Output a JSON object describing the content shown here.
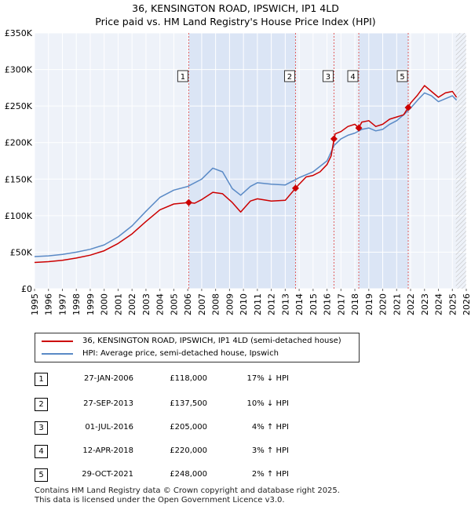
{
  "title": {
    "line1": "36, KENSINGTON ROAD, IPSWICH, IP1 4LD",
    "line2": "Price paid vs. HM Land Registry's House Price Index (HPI)"
  },
  "colors": {
    "property": "#cc0000",
    "hpi": "#5a8ac6",
    "shade": "#dbe5f5",
    "vline": "#e06060",
    "grid": "#ffffff",
    "background": "#ffffff"
  },
  "chart_data": {
    "type": "line",
    "title": "36, KENSINGTON ROAD, IPSWICH, IP1 4LD Price paid vs. HM Land Registry's House Price Index (HPI)",
    "xlabel": "",
    "ylabel": "",
    "xlim": [
      1995,
      2026
    ],
    "ylim": [
      0,
      350000
    ],
    "xticks": [
      "1995",
      "1996",
      "1997",
      "1998",
      "1999",
      "2000",
      "2001",
      "2002",
      "2003",
      "2004",
      "2005",
      "2006",
      "2007",
      "2008",
      "2009",
      "2010",
      "2011",
      "2012",
      "2013",
      "2014",
      "2015",
      "2016",
      "2017",
      "2018",
      "2019",
      "2020",
      "2021",
      "2022",
      "2023",
      "2024",
      "2025",
      "2026"
    ],
    "yticks": [
      {
        "value": 0,
        "label": "£0"
      },
      {
        "value": 50000,
        "label": "£50K"
      },
      {
        "value": 100000,
        "label": "£100K"
      },
      {
        "value": 150000,
        "label": "£150K"
      },
      {
        "value": 200000,
        "label": "£200K"
      },
      {
        "value": 250000,
        "label": "£250K"
      },
      {
        "value": 300000,
        "label": "£300K"
      },
      {
        "value": 350000,
        "label": "£350K"
      }
    ],
    "shaded_periods": [
      [
        2006.07,
        2013.74
      ],
      [
        2018.28,
        2021.83
      ]
    ],
    "hatched_from": 2025.25,
    "series": [
      {
        "name": "36, KENSINGTON ROAD, IPSWICH, IP1 4LD (semi-detached house)",
        "color": "#cc0000",
        "x": [
          1995,
          1996,
          1997,
          1998,
          1999,
          2000,
          2001,
          2002,
          2003,
          2004,
          2005,
          2006.07,
          2006.5,
          2007,
          2007.8,
          2008.5,
          2009.2,
          2009.8,
          2010.5,
          2011,
          2012,
          2013,
          2013.74,
          2014,
          2014.5,
          2015,
          2015.5,
          2016,
          2016.3,
          2016.5,
          2016.6,
          2017,
          2017.5,
          2018,
          2018.28,
          2018.5,
          2019,
          2019.5,
          2020,
          2020.5,
          2021,
          2021.5,
          2021.83,
          2022,
          2022.5,
          2023,
          2023.5,
          2024,
          2024.5,
          2025,
          2025.3
        ],
        "y": [
          36000,
          37000,
          39000,
          42000,
          46000,
          52000,
          62000,
          75000,
          92000,
          108000,
          116000,
          118000,
          117000,
          122000,
          132000,
          130000,
          118000,
          105000,
          120000,
          123000,
          120000,
          121000,
          137500,
          143000,
          153000,
          155000,
          160000,
          170000,
          182000,
          205000,
          212000,
          215000,
          222000,
          225000,
          220000,
          228000,
          230000,
          222000,
          225000,
          232000,
          235000,
          238000,
          248000,
          254000,
          265000,
          278000,
          270000,
          262000,
          268000,
          270000,
          262000
        ]
      },
      {
        "name": "HPI: Average price, semi-detached house, Ipswich",
        "color": "#5a8ac6",
        "x": [
          1995,
          1996,
          1997,
          1998,
          1999,
          2000,
          2001,
          2002,
          2003,
          2004,
          2005,
          2006,
          2007,
          2007.8,
          2008.5,
          2009.2,
          2009.8,
          2010.5,
          2011,
          2012,
          2013,
          2014,
          2015,
          2016,
          2016.5,
          2017,
          2017.5,
          2018,
          2018.5,
          2019,
          2019.5,
          2020,
          2020.5,
          2021,
          2021.5,
          2022,
          2022.5,
          2023,
          2023.5,
          2024,
          2024.5,
          2025,
          2025.3
        ],
        "y": [
          44000,
          45000,
          47000,
          50000,
          54000,
          60000,
          71000,
          86000,
          106000,
          125000,
          135000,
          140000,
          150000,
          165000,
          160000,
          137000,
          128000,
          140000,
          145000,
          143000,
          142000,
          152000,
          160000,
          175000,
          196000,
          205000,
          210000,
          213000,
          218000,
          220000,
          216000,
          218000,
          225000,
          230000,
          238000,
          247000,
          258000,
          268000,
          264000,
          256000,
          260000,
          264000,
          258000
        ]
      }
    ],
    "sale_markers": [
      {
        "label": "1",
        "x": 2006.07,
        "y": 118000
      },
      {
        "label": "2",
        "x": 2013.74,
        "y": 137500
      },
      {
        "label": "3",
        "x": 2016.5,
        "y": 205000
      },
      {
        "label": "4",
        "x": 2018.28,
        "y": 220000
      },
      {
        "label": "5",
        "x": 2021.83,
        "y": 248000
      }
    ]
  },
  "legend": {
    "property_label": "36, KENSINGTON ROAD, IPSWICH, IP1 4LD (semi-detached house)",
    "hpi_label": "HPI: Average price, semi-detached house, Ipswich"
  },
  "sales": [
    {
      "num": "1",
      "date": "27-JAN-2006",
      "price": "£118,000",
      "hpi": "17% ↓ HPI"
    },
    {
      "num": "2",
      "date": "27-SEP-2013",
      "price": "£137,500",
      "hpi": "10% ↓ HPI"
    },
    {
      "num": "3",
      "date": "01-JUL-2016",
      "price": "£205,000",
      "hpi": "4% ↑ HPI"
    },
    {
      "num": "4",
      "date": "12-APR-2018",
      "price": "£220,000",
      "hpi": "3% ↑ HPI"
    },
    {
      "num": "5",
      "date": "29-OCT-2021",
      "price": "£248,000",
      "hpi": "2% ↑ HPI"
    }
  ],
  "footer": {
    "line1": "Contains HM Land Registry data © Crown copyright and database right 2025.",
    "line2": "This data is licensed under the Open Government Licence v3.0."
  }
}
